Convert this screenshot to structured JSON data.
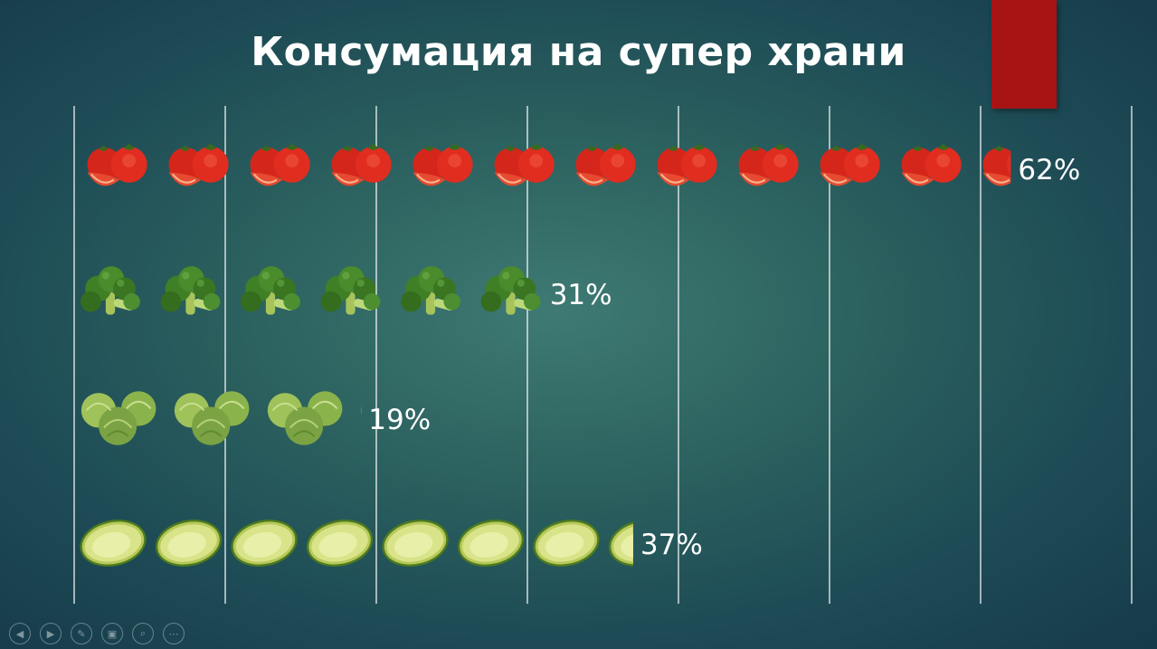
{
  "slide": {
    "title": "Консумация на супер храни",
    "accent_color": "#a81414"
  },
  "toolbar": {
    "buttons": [
      {
        "icon": "previous-icon",
        "glyph": "◀"
      },
      {
        "icon": "next-icon",
        "glyph": "▶"
      },
      {
        "icon": "pen-icon",
        "glyph": "✎"
      },
      {
        "icon": "slides-icon",
        "glyph": "▣"
      },
      {
        "icon": "zoom-icon",
        "glyph": "⌕"
      },
      {
        "icon": "more-icon",
        "glyph": "⋯"
      }
    ]
  },
  "chart_data": {
    "type": "bar",
    "orientation": "horizontal",
    "style": "pictograph",
    "title": "Консумация на супер храни",
    "xlim": [
      0,
      70
    ],
    "grid": true,
    "categories": [
      "Домати",
      "Броколи",
      "Брюкселско зеле",
      "Авокадо"
    ],
    "series": [
      {
        "values": [
          62,
          31,
          19,
          37
        ],
        "labels": [
          "62%",
          "31%",
          "19%",
          "37%"
        ],
        "icons": [
          "tomato-icon",
          "broccoli-icon",
          "brussels-sprout-icon",
          "avocado-icon"
        ],
        "colors": [
          "#d92b1f",
          "#3f8a2a",
          "#8fb85c",
          "#c9d84f"
        ]
      }
    ]
  }
}
